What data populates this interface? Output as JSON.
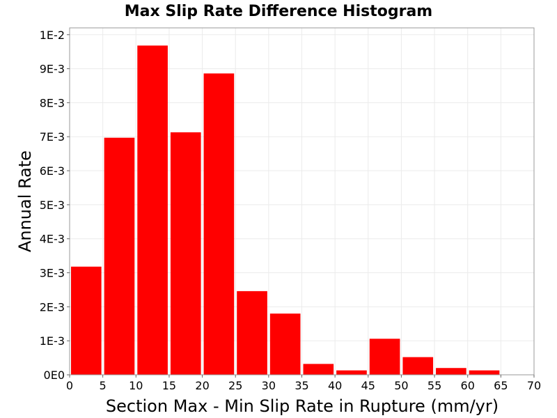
{
  "chart_data": {
    "type": "bar",
    "title": "Max Slip Rate Difference Histogram",
    "xlabel": "Section Max - Min Slip Rate in Rupture (mm/yr)",
    "ylabel": "Annual Rate",
    "bin_width": 5,
    "x": [
      2.5,
      7.5,
      12.5,
      17.5,
      22.5,
      27.5,
      32.5,
      37.5,
      42.5,
      47.5,
      52.5,
      57.5,
      62.5,
      67.5
    ],
    "values": [
      0.00318,
      0.00697,
      0.00968,
      0.00713,
      0.00886,
      0.00246,
      0.0018,
      0.00032,
      0.00013,
      0.00106,
      0.00052,
      0.0002,
      0.00013,
      1e-05
    ],
    "xlim": [
      0,
      70
    ],
    "ylim": [
      0,
      0.0102
    ],
    "xticks": [
      0,
      5,
      10,
      15,
      20,
      25,
      30,
      35,
      40,
      45,
      50,
      55,
      60,
      65,
      70
    ],
    "xtick_labels": [
      "0",
      "5",
      "10",
      "15",
      "20",
      "25",
      "30",
      "35",
      "40",
      "45",
      "50",
      "55",
      "60",
      "65",
      "70"
    ],
    "yticks": [
      0,
      0.001,
      0.002,
      0.003,
      0.004,
      0.005,
      0.006,
      0.007,
      0.008,
      0.009,
      0.01
    ],
    "ytick_labels": [
      "0E0",
      "1E-3",
      "2E-3",
      "3E-3",
      "4E-3",
      "5E-3",
      "6E-3",
      "7E-3",
      "8E-3",
      "9E-3",
      "1E-2"
    ],
    "grid": true,
    "colors": {
      "bar": "#ff0000",
      "grid": "#ebebeb",
      "axis": "#999999",
      "background": "#ffffff"
    }
  }
}
